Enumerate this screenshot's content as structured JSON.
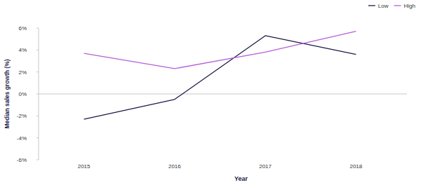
{
  "chart_data": {
    "type": "line",
    "x_label": "Year",
    "y_label": "Median sales growth (%)",
    "categories": [
      "2015",
      "2016",
      "2017",
      "2018"
    ],
    "series": [
      {
        "name": "Low",
        "color": "#1c1b48",
        "values": [
          -2.3,
          -0.5,
          5.3,
          3.6
        ]
      },
      {
        "name": "High",
        "color": "#b65fd8",
        "values": [
          3.7,
          2.3,
          3.8,
          5.7
        ]
      }
    ],
    "ylim": [
      -6,
      6
    ],
    "yticks": [
      {
        "value": -6,
        "label": "-6%"
      },
      {
        "value": -4,
        "label": "-4%"
      },
      {
        "value": -2,
        "label": "-2%"
      },
      {
        "value": 0,
        "label": "0%"
      },
      {
        "value": 2,
        "label": "2%"
      },
      {
        "value": 4,
        "label": "4%"
      },
      {
        "value": 6,
        "label": "6%"
      }
    ],
    "grid": false,
    "legend": "top-right"
  }
}
